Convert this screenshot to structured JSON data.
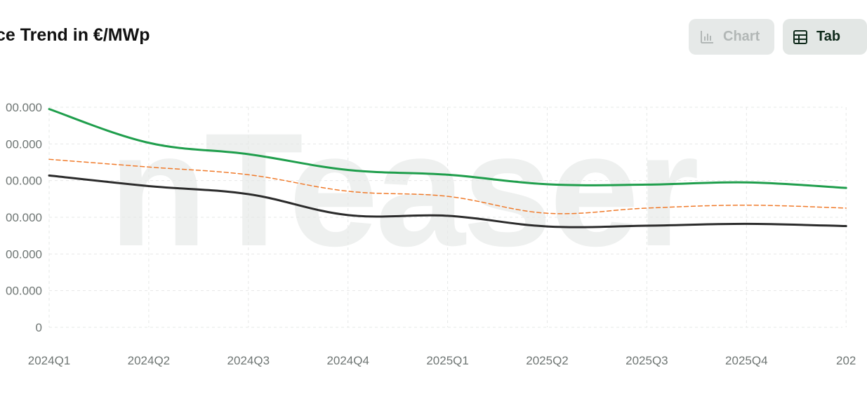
{
  "header": {
    "title": "ce Trend in €/MWp",
    "chart_button": {
      "label": "Chart",
      "icon": "bar-chart-icon"
    },
    "table_button": {
      "label": "Tab",
      "icon": "table-icon"
    }
  },
  "watermark": "nTeaser",
  "chart_data": {
    "type": "line",
    "categories": [
      "2024Q1",
      "2024Q2",
      "2024Q3",
      "2024Q4",
      "2025Q1",
      "2025Q2",
      "2025Q3",
      "2025Q4",
      "202"
    ],
    "y_tick_labels": [
      "00.000",
      "00.000",
      "00.000",
      "00.000",
      "00.000",
      "00.000",
      "0"
    ],
    "ylim": [
      0,
      600
    ],
    "grid": true,
    "series": [
      {
        "values": [
          595,
          503,
          472,
          429,
          416,
          390,
          389,
          395,
          380
        ],
        "color": "#1f9e4c",
        "dash": false
      },
      {
        "values": [
          458,
          437,
          416,
          371,
          357,
          311,
          325,
          333,
          325
        ],
        "color": "#f07a2a",
        "dash": true
      },
      {
        "values": [
          414,
          385,
          363,
          306,
          304,
          275,
          277,
          282,
          276
        ],
        "color": "#2b2b2b",
        "dash": false
      }
    ]
  }
}
